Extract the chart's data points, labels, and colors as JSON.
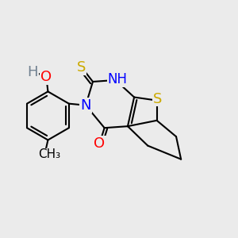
{
  "background_color": "#ebebeb",
  "atom_colors": {
    "C": "#000000",
    "N": "#0000ff",
    "O": "#ff0000",
    "S": "#ccaa00",
    "H": "#708090"
  },
  "font_size_atoms": 13,
  "font_size_small": 10,
  "line_width": 1.5,
  "line_color": "#000000"
}
